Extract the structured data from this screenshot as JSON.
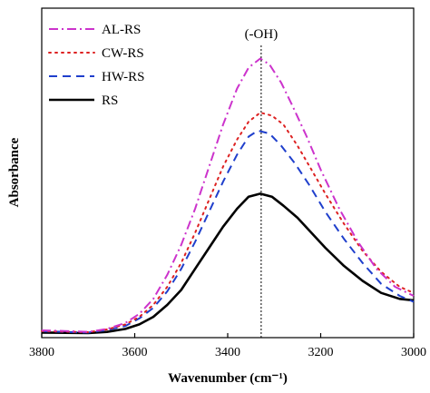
{
  "chart_data": {
    "type": "line",
    "xlabel": "Wavenumber (cm⁻¹)",
    "ylabel": "Absorbance",
    "xlim": [
      3800,
      3000
    ],
    "ylim": [
      0,
      1
    ],
    "x_reversed": true,
    "y_ticks_shown": false,
    "xticks": [
      3800,
      3600,
      3400,
      3200,
      3000
    ],
    "xtick_labels": [
      "3800",
      "3600",
      "3400",
      "3200",
      "3000"
    ],
    "legend_position": "top-left",
    "grid": false,
    "annotation": {
      "text": "(-OH)",
      "x": 3328
    },
    "series": [
      {
        "name": "AL-RS",
        "color": "#cc33cc",
        "dash": "dashdot",
        "points": [
          [
            3800,
            0.015
          ],
          [
            3750,
            0.013
          ],
          [
            3700,
            0.01
          ],
          [
            3660,
            0.02
          ],
          [
            3620,
            0.04
          ],
          [
            3590,
            0.07
          ],
          [
            3560,
            0.12
          ],
          [
            3530,
            0.2
          ],
          [
            3500,
            0.3
          ],
          [
            3470,
            0.42
          ],
          [
            3440,
            0.56
          ],
          [
            3410,
            0.7
          ],
          [
            3380,
            0.82
          ],
          [
            3355,
            0.89
          ],
          [
            3330,
            0.92
          ],
          [
            3310,
            0.9
          ],
          [
            3285,
            0.84
          ],
          [
            3260,
            0.76
          ],
          [
            3230,
            0.66
          ],
          [
            3200,
            0.55
          ],
          [
            3160,
            0.42
          ],
          [
            3120,
            0.31
          ],
          [
            3080,
            0.22
          ],
          [
            3040,
            0.16
          ],
          [
            3000,
            0.13
          ]
        ]
      },
      {
        "name": "CW-RS",
        "color": "#dd2222",
        "dash": "dot",
        "points": [
          [
            3800,
            0.013
          ],
          [
            3750,
            0.011
          ],
          [
            3700,
            0.009
          ],
          [
            3660,
            0.018
          ],
          [
            3620,
            0.035
          ],
          [
            3590,
            0.06
          ],
          [
            3560,
            0.1
          ],
          [
            3530,
            0.16
          ],
          [
            3500,
            0.24
          ],
          [
            3470,
            0.34
          ],
          [
            3440,
            0.45
          ],
          [
            3410,
            0.56
          ],
          [
            3380,
            0.65
          ],
          [
            3355,
            0.71
          ],
          [
            3330,
            0.74
          ],
          [
            3305,
            0.73
          ],
          [
            3280,
            0.7
          ],
          [
            3250,
            0.63
          ],
          [
            3220,
            0.55
          ],
          [
            3190,
            0.47
          ],
          [
            3150,
            0.37
          ],
          [
            3110,
            0.28
          ],
          [
            3070,
            0.21
          ],
          [
            3030,
            0.16
          ],
          [
            3000,
            0.14
          ]
        ]
      },
      {
        "name": "HW-RS",
        "color": "#1f3fcc",
        "dash": "dash",
        "points": [
          [
            3800,
            0.012
          ],
          [
            3750,
            0.01
          ],
          [
            3700,
            0.008
          ],
          [
            3660,
            0.016
          ],
          [
            3620,
            0.03
          ],
          [
            3590,
            0.055
          ],
          [
            3560,
            0.09
          ],
          [
            3530,
            0.145
          ],
          [
            3500,
            0.22
          ],
          [
            3470,
            0.31
          ],
          [
            3440,
            0.41
          ],
          [
            3410,
            0.51
          ],
          [
            3380,
            0.6
          ],
          [
            3355,
            0.66
          ],
          [
            3335,
            0.68
          ],
          [
            3310,
            0.67
          ],
          [
            3285,
            0.63
          ],
          [
            3255,
            0.57
          ],
          [
            3225,
            0.5
          ],
          [
            3190,
            0.41
          ],
          [
            3150,
            0.32
          ],
          [
            3110,
            0.24
          ],
          [
            3070,
            0.17
          ],
          [
            3030,
            0.13
          ],
          [
            3000,
            0.11
          ]
        ]
      },
      {
        "name": "RS",
        "color": "#000000",
        "dash": "solid",
        "points": [
          [
            3800,
            0.008
          ],
          [
            3750,
            0.007
          ],
          [
            3700,
            0.006
          ],
          [
            3660,
            0.01
          ],
          [
            3620,
            0.02
          ],
          [
            3590,
            0.035
          ],
          [
            3560,
            0.06
          ],
          [
            3530,
            0.1
          ],
          [
            3500,
            0.15
          ],
          [
            3470,
            0.22
          ],
          [
            3440,
            0.29
          ],
          [
            3410,
            0.36
          ],
          [
            3380,
            0.42
          ],
          [
            3355,
            0.46
          ],
          [
            3330,
            0.47
          ],
          [
            3305,
            0.46
          ],
          [
            3280,
            0.43
          ],
          [
            3250,
            0.39
          ],
          [
            3220,
            0.34
          ],
          [
            3190,
            0.29
          ],
          [
            3150,
            0.23
          ],
          [
            3110,
            0.18
          ],
          [
            3070,
            0.14
          ],
          [
            3030,
            0.12
          ],
          [
            3000,
            0.115
          ]
        ]
      }
    ]
  }
}
